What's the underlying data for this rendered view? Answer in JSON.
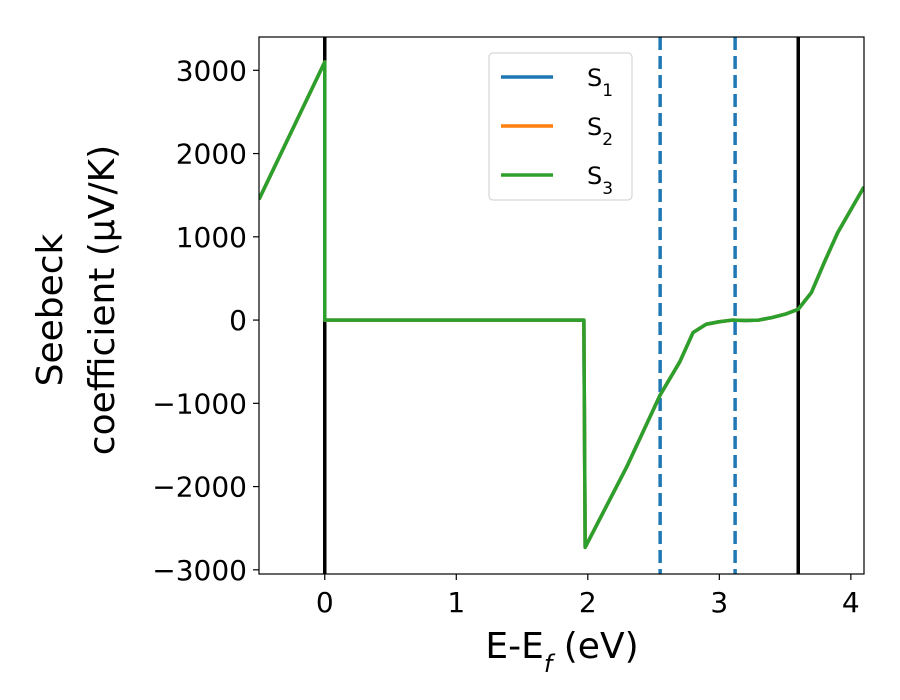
{
  "chart_data": {
    "type": "line",
    "title": "",
    "xlabel_main": "E-E",
    "xlabel_sub": "f",
    "xlabel_unit": " (eV)",
    "ylabel_line1": "Seebeck",
    "ylabel_line2": "coefficient  (μV/K)",
    "xlim": [
      -0.5,
      4.1
    ],
    "ylim": [
      -3050,
      3400
    ],
    "x_ticks": [
      0,
      1,
      2,
      3,
      4
    ],
    "x_tick_labels": [
      "0",
      "1",
      "2",
      "3",
      "4"
    ],
    "y_ticks": [
      3000,
      2000,
      1000,
      0,
      -1000,
      -2000,
      -3000
    ],
    "y_tick_labels": [
      "3000",
      "2000",
      "1000",
      "0",
      "−1000",
      "−2000",
      "−3000"
    ],
    "grid": false,
    "legend_position": "top-center",
    "x": [
      -0.5,
      0.0,
      0.0,
      0.02,
      1.97,
      1.97,
      1.98,
      2.3,
      2.55,
      2.7,
      2.8,
      2.9,
      3.0,
      3.1,
      3.2,
      3.3,
      3.4,
      3.5,
      3.6,
      3.7,
      3.8,
      3.9,
      4.1
    ],
    "series": [
      {
        "name": "S",
        "sub": "1",
        "color": "#1f77b4",
        "values": [
          1450,
          3100,
          0,
          0,
          0,
          0,
          -2730,
          -1750,
          -900,
          -500,
          -150,
          -50,
          -20,
          0,
          -5,
          0,
          30,
          70,
          130,
          330,
          700,
          1050,
          1600
        ]
      },
      {
        "name": "S",
        "sub": "2",
        "color": "#ff7f0e",
        "values": [
          1450,
          3100,
          0,
          0,
          0,
          0,
          -2730,
          -1750,
          -900,
          -500,
          -150,
          -50,
          -20,
          0,
          -5,
          0,
          30,
          70,
          130,
          330,
          700,
          1050,
          1600
        ]
      },
      {
        "name": "S",
        "sub": "3",
        "color": "#2ca02c",
        "values": [
          1450,
          3100,
          0,
          0,
          0,
          0,
          -2730,
          -1750,
          -900,
          -500,
          -150,
          -50,
          -20,
          0,
          -5,
          0,
          30,
          70,
          130,
          330,
          700,
          1050,
          1600
        ]
      }
    ],
    "vlines_solid": [
      0.0,
      3.6
    ],
    "vlines_dashed": [
      2.55,
      3.12
    ],
    "vline_solid_color": "#000000",
    "vline_dashed_color": "#1f77b4"
  }
}
